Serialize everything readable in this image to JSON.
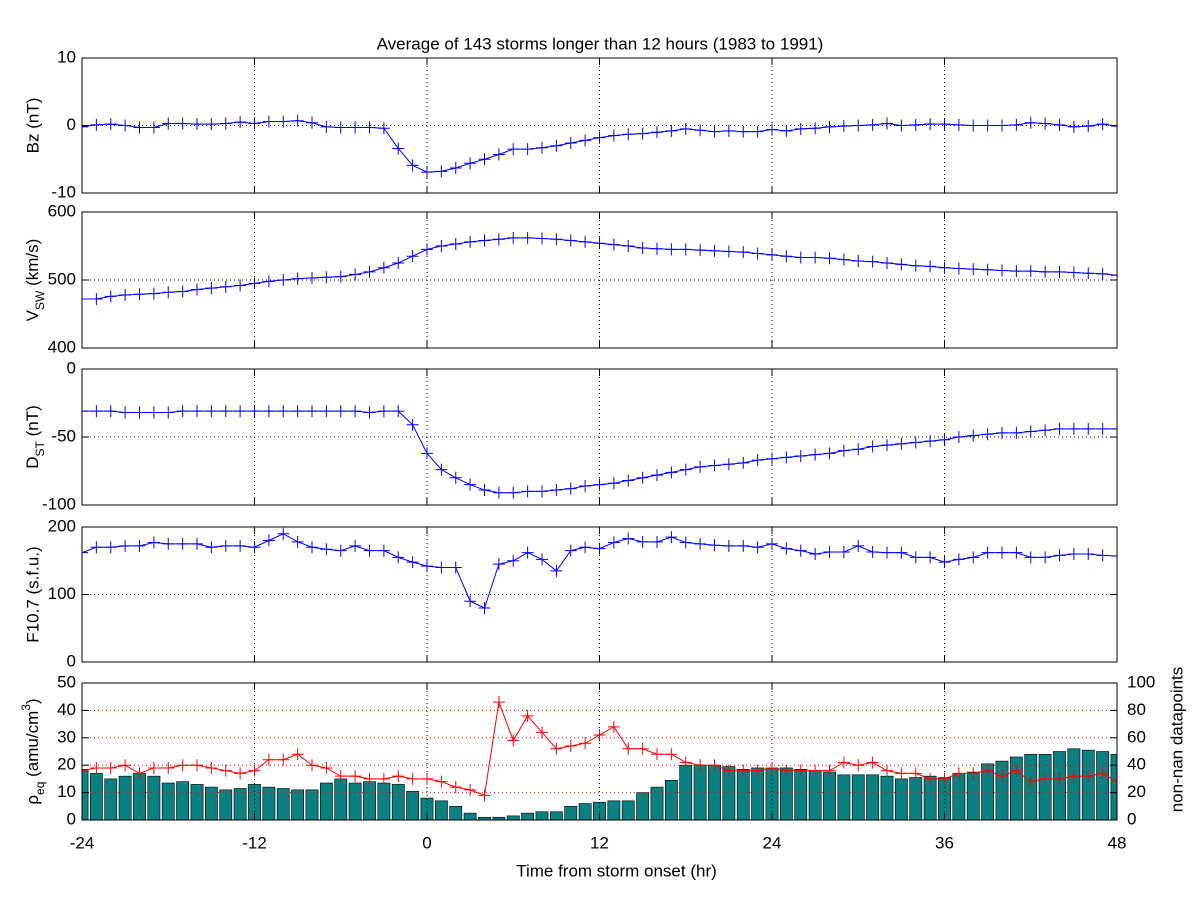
{
  "chart_data": [
    {
      "type": "line",
      "title": "Average of 143 storms longer than 12 hours (1983 to 1991)",
      "ylabel": "Bz (nT)",
      "x": [
        -24,
        -23,
        -22,
        -21,
        -20,
        -19,
        -18,
        -17,
        -16,
        -15,
        -14,
        -13,
        -12,
        -11,
        -10,
        -9,
        -8,
        -7,
        -6,
        -5,
        -4,
        -3,
        -2,
        -1,
        0,
        1,
        2,
        3,
        4,
        5,
        6,
        7,
        8,
        9,
        10,
        11,
        12,
        13,
        14,
        15,
        16,
        17,
        18,
        19,
        20,
        21,
        22,
        23,
        24,
        25,
        26,
        27,
        28,
        29,
        30,
        31,
        32,
        33,
        34,
        35,
        36,
        37,
        38,
        39,
        40,
        41,
        42,
        43,
        44,
        45,
        46,
        47,
        48
      ],
      "values": [
        -0.2,
        0.1,
        0.2,
        0,
        -0.3,
        -0.3,
        0.3,
        0.3,
        0.2,
        0.2,
        0.3,
        0.5,
        0.3,
        0.6,
        0.6,
        0.7,
        0.4,
        -0.2,
        -0.3,
        -0.3,
        -0.3,
        -0.4,
        -3.4,
        -5.9,
        -6.9,
        -6.8,
        -6.3,
        -5.6,
        -5,
        -4.3,
        -3.5,
        -3.5,
        -3.3,
        -3,
        -2.6,
        -2.2,
        -1.8,
        -1.5,
        -1.3,
        -1.2,
        -1,
        -0.8,
        -0.5,
        -0.7,
        -0.9,
        -0.8,
        -0.9,
        -0.9,
        -0.6,
        -0.8,
        -0.5,
        -0.4,
        -0.2,
        -0.1,
        0,
        0.1,
        0.3,
        0,
        0.1,
        0.2,
        0.2,
        0.1,
        0,
        0,
        0,
        0.1,
        0.4,
        0.3,
        0.1,
        -0.2,
        -0.1,
        0.2,
        -0.1
      ],
      "color": "#0000ff",
      "xlim": [
        -24,
        48
      ],
      "xticks": [
        -24,
        -12,
        0,
        12,
        24,
        36,
        48
      ],
      "ylim": [
        -10,
        10
      ],
      "yticks": [
        -10,
        0,
        10
      ],
      "grid": true
    },
    {
      "type": "line",
      "ylabel": [
        "V",
        "SW",
        " (km/s)"
      ],
      "x": [
        -24,
        -23,
        -22,
        -21,
        -20,
        -19,
        -18,
        -17,
        -16,
        -15,
        -14,
        -13,
        -12,
        -11,
        -10,
        -9,
        -8,
        -7,
        -6,
        -5,
        -4,
        -3,
        -2,
        -1,
        0,
        1,
        2,
        3,
        4,
        5,
        6,
        7,
        8,
        9,
        10,
        11,
        12,
        13,
        14,
        15,
        16,
        17,
        18,
        19,
        20,
        21,
        22,
        23,
        24,
        25,
        26,
        27,
        28,
        29,
        30,
        31,
        32,
        33,
        34,
        35,
        36,
        37,
        38,
        39,
        40,
        41,
        42,
        43,
        44,
        45,
        46,
        47,
        48
      ],
      "values": [
        472,
        472,
        476,
        478,
        479,
        480,
        482,
        483,
        486,
        488,
        490,
        492,
        495,
        498,
        500,
        502,
        503,
        504,
        505,
        508,
        512,
        518,
        525,
        535,
        545,
        550,
        553,
        556,
        558,
        560,
        562,
        562,
        561,
        560,
        558,
        556,
        554,
        552,
        550,
        547,
        546,
        545,
        545,
        544,
        543,
        542,
        541,
        539,
        537,
        535,
        533,
        533,
        532,
        530,
        528,
        527,
        525,
        523,
        521,
        520,
        518,
        517,
        516,
        515,
        514,
        513,
        513,
        512,
        512,
        511,
        510,
        509,
        507
      ],
      "color": "#0000ff",
      "xlim": [
        -24,
        48
      ],
      "xticks": [
        -24,
        -12,
        0,
        12,
        24,
        36,
        48
      ],
      "ylim": [
        400,
        600
      ],
      "yticks": [
        400,
        500,
        600
      ],
      "grid": true
    },
    {
      "type": "line",
      "ylabel": [
        "D",
        "ST",
        " (nT)"
      ],
      "x": [
        -24,
        -23,
        -22,
        -21,
        -20,
        -19,
        -18,
        -17,
        -16,
        -15,
        -14,
        -13,
        -12,
        -11,
        -10,
        -9,
        -8,
        -7,
        -6,
        -5,
        -4,
        -3,
        -2,
        -1,
        0,
        1,
        2,
        3,
        4,
        5,
        6,
        7,
        8,
        9,
        10,
        11,
        12,
        13,
        14,
        15,
        16,
        17,
        18,
        19,
        20,
        21,
        22,
        23,
        24,
        25,
        26,
        27,
        28,
        29,
        30,
        31,
        32,
        33,
        34,
        35,
        36,
        37,
        38,
        39,
        40,
        41,
        42,
        43,
        44,
        45,
        46,
        47,
        48
      ],
      "values": [
        -31,
        -31,
        -31,
        -32,
        -32,
        -32,
        -32,
        -31,
        -31,
        -31,
        -31,
        -31,
        -31,
        -31,
        -31,
        -31,
        -31,
        -31,
        -31,
        -31,
        -32,
        -31,
        -31,
        -41,
        -62,
        -74,
        -80,
        -85,
        -89,
        -91,
        -91,
        -90,
        -90,
        -89,
        -88,
        -86,
        -85,
        -84,
        -82,
        -80,
        -78,
        -76,
        -74,
        -72,
        -71,
        -70,
        -69,
        -67,
        -66,
        -65,
        -64,
        -63,
        -62,
        -60,
        -59,
        -57,
        -56,
        -55,
        -54,
        -53,
        -52,
        -50,
        -49,
        -48,
        -47,
        -47,
        -46,
        -45,
        -44,
        -44,
        -44,
        -44,
        -44
      ],
      "color": "#0000ff",
      "xlim": [
        -24,
        48
      ],
      "xticks": [
        -24,
        -12,
        0,
        12,
        24,
        36,
        48
      ],
      "ylim": [
        -100,
        0
      ],
      "yticks": [
        -100,
        -50,
        0
      ],
      "grid": true
    },
    {
      "type": "line",
      "ylabel": "F10.7 (s.f.u.)",
      "x": [
        -24,
        -23,
        -22,
        -21,
        -20,
        -19,
        -18,
        -17,
        -16,
        -15,
        -14,
        -13,
        -12,
        -11,
        -10,
        -9,
        -8,
        -7,
        -6,
        -5,
        -4,
        -3,
        -2,
        -1,
        0,
        1,
        2,
        3,
        4,
        5,
        6,
        7,
        8,
        9,
        10,
        11,
        12,
        13,
        14,
        15,
        16,
        17,
        18,
        19,
        20,
        21,
        22,
        23,
        24,
        25,
        26,
        27,
        28,
        29,
        30,
        31,
        32,
        33,
        34,
        35,
        36,
        37,
        38,
        39,
        40,
        41,
        42,
        43,
        44,
        45,
        46,
        47,
        48
      ],
      "values": [
        162,
        170,
        170,
        172,
        172,
        177,
        175,
        175,
        175,
        170,
        172,
        172,
        170,
        180,
        190,
        178,
        170,
        167,
        165,
        172,
        165,
        165,
        155,
        148,
        142,
        140,
        140,
        90,
        80,
        145,
        150,
        162,
        152,
        135,
        165,
        170,
        168,
        177,
        183,
        178,
        178,
        185,
        177,
        175,
        173,
        172,
        172,
        170,
        175,
        168,
        165,
        160,
        163,
        163,
        172,
        163,
        162,
        162,
        155,
        155,
        148,
        152,
        155,
        162,
        162,
        162,
        155,
        155,
        158,
        160,
        160,
        158,
        157
      ],
      "color": "#0000ff",
      "xlim": [
        -24,
        48
      ],
      "xticks": [
        -24,
        -12,
        0,
        12,
        24,
        36,
        48
      ],
      "ylim": [
        0,
        200
      ],
      "yticks": [
        0,
        100,
        200
      ],
      "grid": true
    },
    {
      "type": "combo",
      "ylabel": [
        "ρ",
        "eq",
        " (amu/cm",
        "3",
        ")"
      ],
      "y2label": "non-nan datapoints",
      "xlabel": "Time from storm onset (hr)",
      "x": [
        -24,
        -23,
        -22,
        -21,
        -20,
        -19,
        -18,
        -17,
        -16,
        -15,
        -14,
        -13,
        -12,
        -11,
        -10,
        -9,
        -8,
        -7,
        -6,
        -5,
        -4,
        -3,
        -2,
        -1,
        0,
        1,
        2,
        3,
        4,
        5,
        6,
        7,
        8,
        9,
        10,
        11,
        12,
        13,
        14,
        15,
        16,
        17,
        18,
        19,
        20,
        21,
        22,
        23,
        24,
        25,
        26,
        27,
        28,
        29,
        30,
        31,
        32,
        33,
        34,
        35,
        36,
        37,
        38,
        39,
        40,
        41,
        42,
        43,
        44,
        45,
        46,
        47,
        48
      ],
      "series": [
        {
          "type": "bar",
          "axis": "y2",
          "color": "#0b8080",
          "values": [
            37,
            34,
            30,
            32,
            34,
            32,
            27,
            28,
            26,
            24,
            22,
            23,
            26,
            24,
            23,
            22,
            22,
            27,
            30,
            27,
            28,
            27,
            26,
            21,
            16,
            14,
            10,
            5,
            2,
            2,
            3,
            5,
            6,
            6,
            10,
            12,
            13,
            14,
            14,
            20,
            24,
            29,
            40,
            40,
            40,
            39,
            37,
            38,
            38,
            38,
            37,
            36,
            35,
            33,
            33,
            33,
            32,
            30,
            31,
            32,
            31,
            34,
            35,
            41,
            43,
            46,
            48,
            48,
            50,
            52,
            51,
            50,
            48
          ]
        },
        {
          "type": "line",
          "color": "#ff0000",
          "values": [
            18,
            19,
            19,
            20,
            17,
            19,
            19,
            20,
            20,
            19,
            18,
            17,
            18,
            22,
            22,
            24,
            20,
            19,
            16,
            16,
            15,
            15,
            16,
            15,
            15,
            14,
            12,
            11,
            9,
            43,
            29,
            38,
            32,
            26,
            27,
            28,
            31,
            34,
            26,
            26,
            24,
            24,
            21,
            20,
            20,
            18,
            18,
            18,
            19,
            18,
            18,
            18,
            18,
            21,
            20,
            21,
            18,
            17,
            17,
            15,
            15,
            17,
            17,
            18,
            16,
            18,
            14,
            15,
            15,
            16,
            16,
            17,
            14
          ]
        }
      ],
      "xlim": [
        -24,
        48
      ],
      "xticks": [
        -24,
        -12,
        0,
        12,
        24,
        36,
        48
      ],
      "ylim": [
        0,
        50
      ],
      "yticks": [
        0,
        10,
        20,
        30,
        40,
        50
      ],
      "y2lim": [
        0,
        100
      ],
      "y2ticks": [
        0,
        20,
        40,
        60,
        80,
        100
      ],
      "grid": true,
      "ycolor": "#ff0000",
      "y2color": "#0b8080"
    }
  ]
}
